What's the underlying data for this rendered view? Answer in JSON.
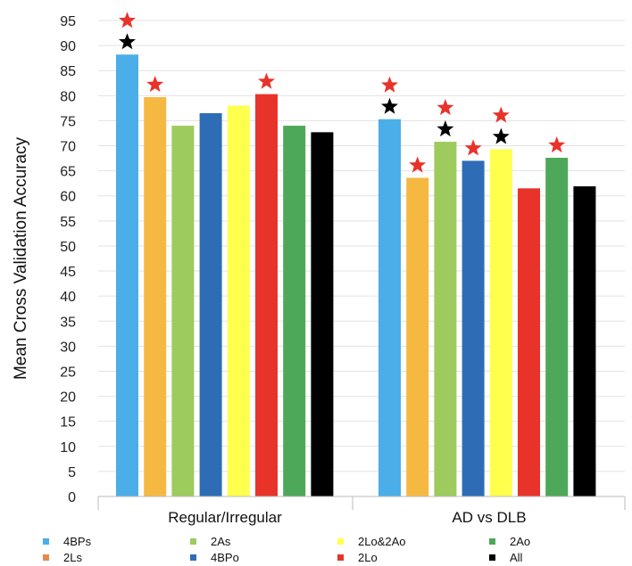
{
  "chart_data": {
    "type": "bar",
    "ylabel": "Mean Cross Validation Accuracy",
    "ylim": [
      0,
      95
    ],
    "yticks": [
      0,
      5,
      10,
      15,
      20,
      25,
      30,
      35,
      40,
      45,
      50,
      55,
      60,
      65,
      70,
      75,
      80,
      85,
      90,
      95
    ],
    "grid": true,
    "legend_position": "bottom",
    "categories": [
      "Regular/Irregular",
      "AD vs DLB"
    ],
    "series": [
      {
        "name": "4BPs",
        "color": "#4BAEE8",
        "values": [
          88.2,
          75.3
        ]
      },
      {
        "name": "2Ls",
        "color": "#F5B942",
        "values": [
          79.7,
          63.6
        ]
      },
      {
        "name": "2As",
        "color": "#9DCB5E",
        "values": [
          74.0,
          70.8
        ]
      },
      {
        "name": "4BPo",
        "color": "#2E6DB6",
        "values": [
          76.5,
          67.0
        ]
      },
      {
        "name": "2Lo&2Ao",
        "color": "#FFFF4D",
        "values": [
          78.0,
          69.3
        ]
      },
      {
        "name": "2Lo",
        "color": "#E8332A",
        "values": [
          80.3,
          61.5
        ]
      },
      {
        "name": "2Ao",
        "color": "#4EA859",
        "values": [
          74.0,
          67.6
        ]
      },
      {
        "name": "All",
        "color": "#000000",
        "values": [
          72.7,
          61.9
        ]
      }
    ],
    "annotations": {
      "red_star": [
        [
          true,
          true,
          false,
          false,
          false,
          true,
          false,
          false
        ],
        [
          true,
          true,
          true,
          true,
          true,
          false,
          true,
          false
        ]
      ],
      "black_star": [
        [
          true,
          false,
          false,
          false,
          false,
          false,
          false,
          false
        ],
        [
          true,
          false,
          true,
          false,
          true,
          false,
          false,
          false
        ]
      ],
      "red_star_color": "#E8332A",
      "black_star_color": "#000000"
    },
    "legend_swatch_colors": [
      "#4BAEE8",
      "#E58A4E",
      "#9DCB5E",
      "#2E6DB6",
      "#FFFF4D",
      "#E8332A",
      "#4EA859",
      "#000000"
    ]
  }
}
